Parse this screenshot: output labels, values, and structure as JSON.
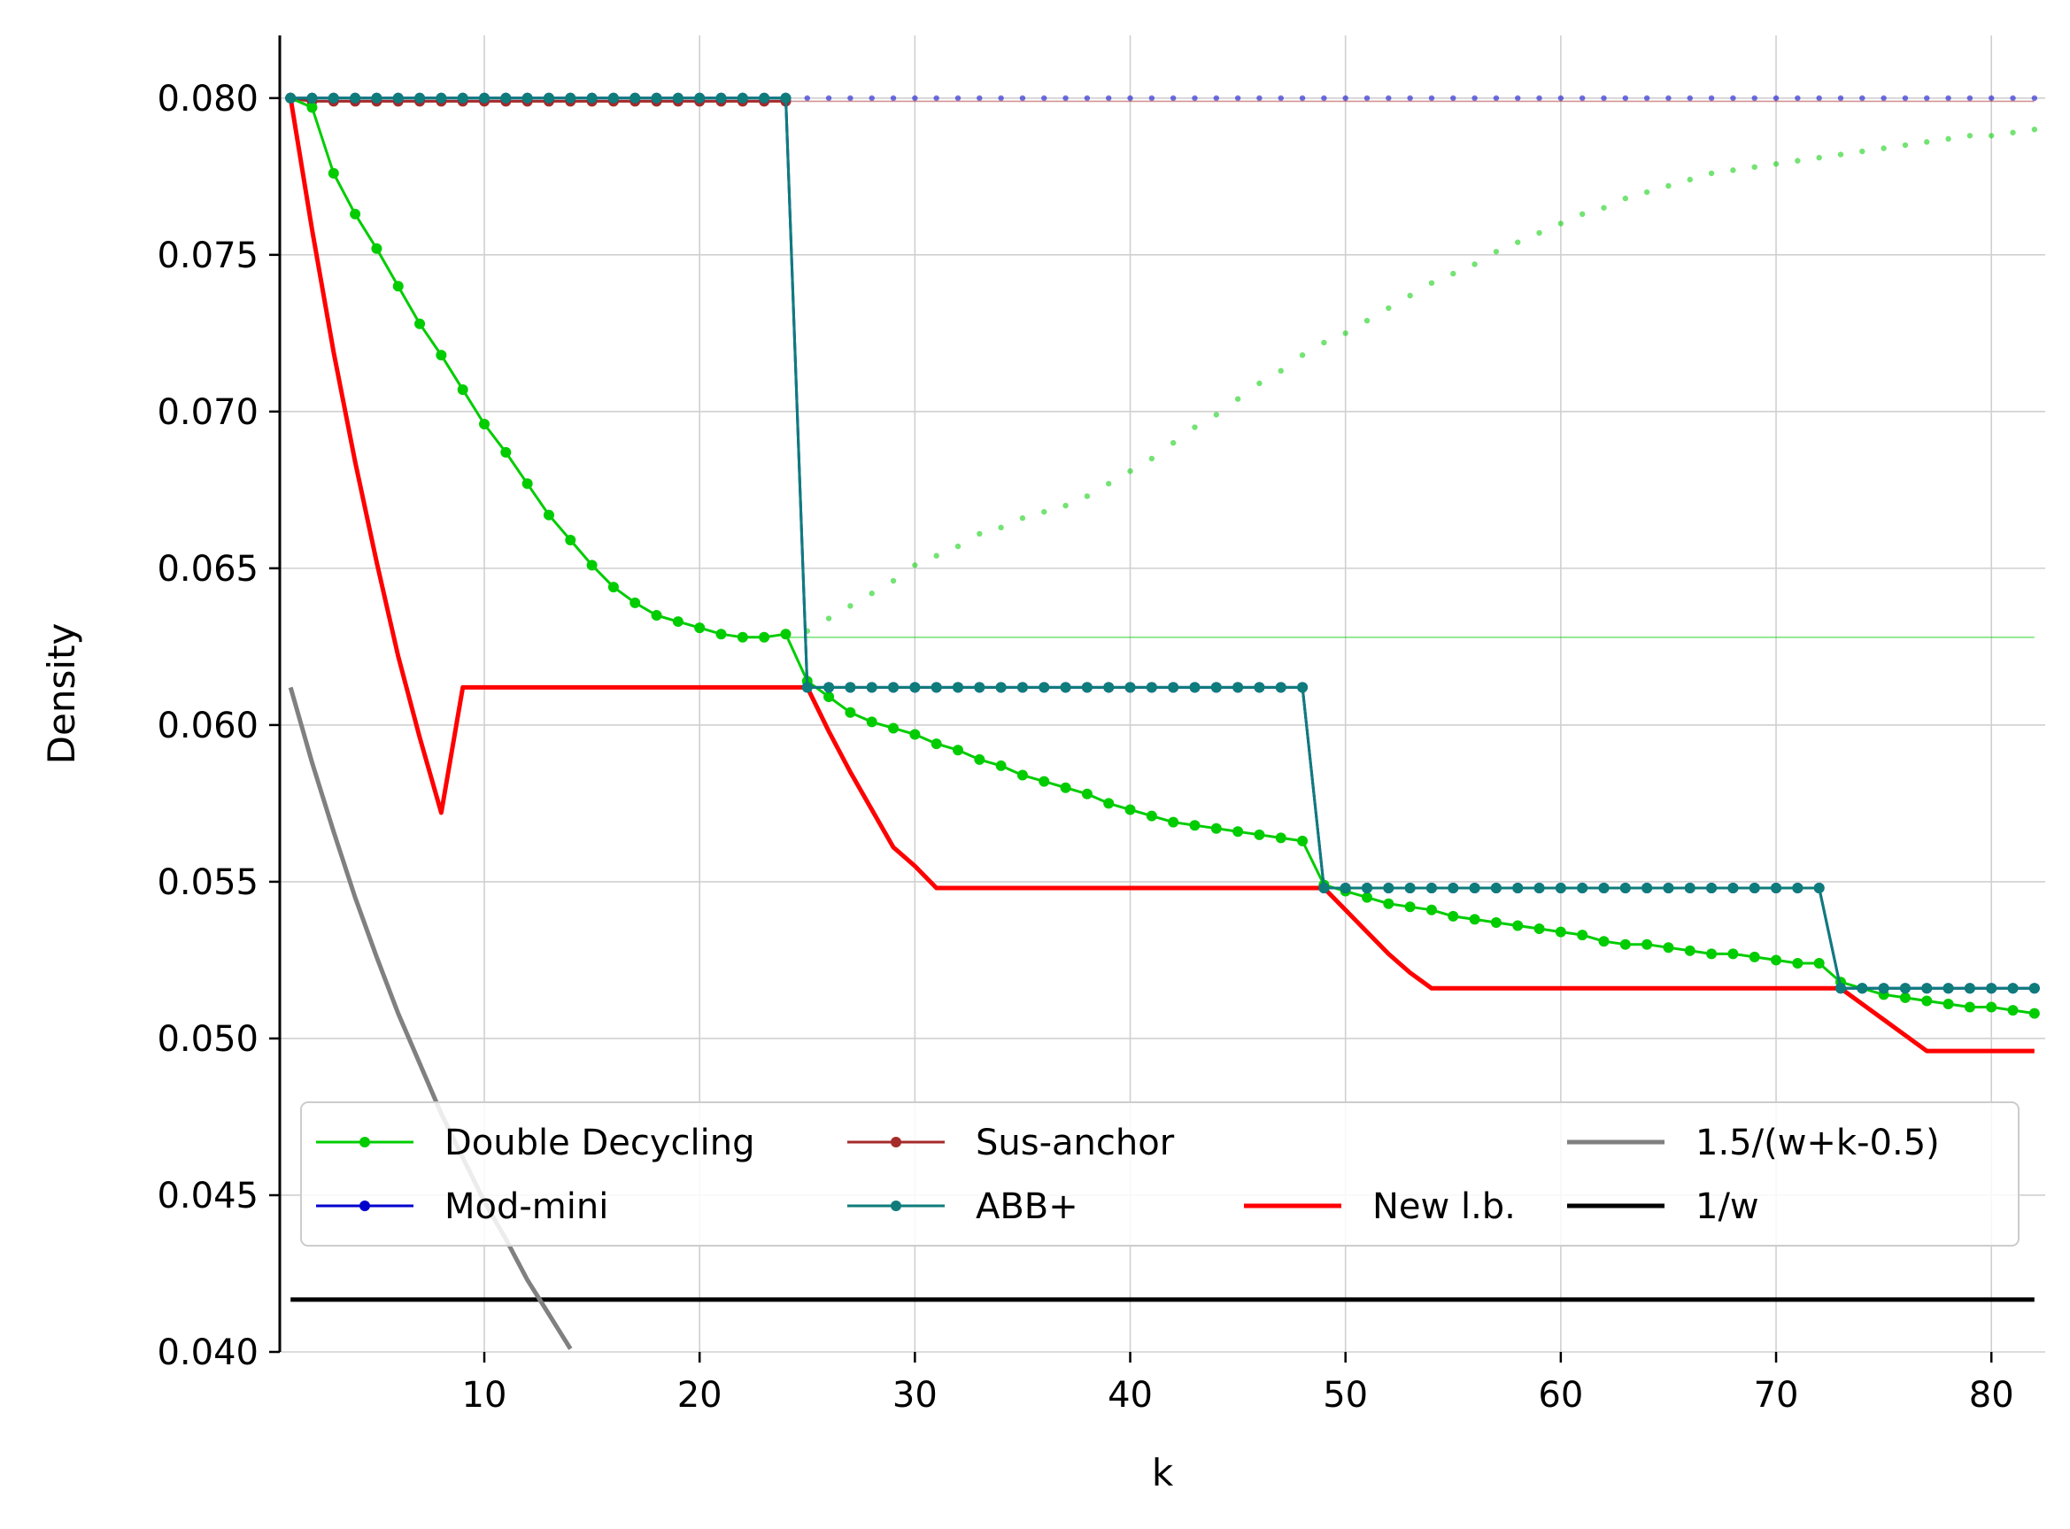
{
  "chart_data": {
    "type": "line",
    "xlabel": "k",
    "ylabel": "Density",
    "xlim": [
      0.5,
      82.5
    ],
    "ylim": [
      0.04,
      0.082
    ],
    "xticks": [
      10,
      20,
      30,
      40,
      50,
      60,
      70,
      80
    ],
    "xtick_labels": [
      "10",
      "20",
      "30",
      "40",
      "50",
      "60",
      "70",
      "80"
    ],
    "yticks": [
      0.04,
      0.045,
      0.05,
      0.055,
      0.06,
      0.065,
      0.07,
      0.075,
      0.08
    ],
    "ytick_labels": [
      "0.040",
      "0.045",
      "0.050",
      "0.055",
      "0.060",
      "0.065",
      "0.070",
      "0.075",
      "0.080"
    ],
    "grid": true,
    "legend_position": "lower-center",
    "series": [
      {
        "name": "Double Decycling",
        "color": "#00cc00",
        "style": "line-markers",
        "x": [
          1,
          2,
          3,
          4,
          5,
          6,
          7,
          8,
          9,
          10,
          11,
          12,
          13,
          14,
          15,
          16,
          17,
          18,
          19,
          20,
          21,
          22,
          23,
          24,
          25,
          26,
          27,
          28,
          29,
          30,
          31,
          32,
          33,
          34,
          35,
          36,
          37,
          38,
          39,
          40,
          41,
          42,
          43,
          44,
          45,
          46,
          47,
          48,
          49,
          50,
          51,
          52,
          53,
          54,
          55,
          56,
          57,
          58,
          59,
          60,
          61,
          62,
          63,
          64,
          65,
          66,
          67,
          68,
          69,
          70,
          71,
          72,
          73,
          74,
          75,
          76,
          77,
          78,
          79,
          80,
          81,
          82
        ],
        "y": [
          0.08,
          0.0797,
          0.0776,
          0.0763,
          0.0752,
          0.074,
          0.0728,
          0.0718,
          0.0707,
          0.0696,
          0.0687,
          0.0677,
          0.0667,
          0.0659,
          0.0651,
          0.0644,
          0.0639,
          0.0635,
          0.0633,
          0.0631,
          0.0629,
          0.0628,
          0.0628,
          0.0629,
          0.0614,
          0.0609,
          0.0604,
          0.0601,
          0.0599,
          0.0597,
          0.0594,
          0.0592,
          0.0589,
          0.0587,
          0.0584,
          0.0582,
          0.058,
          0.0578,
          0.0575,
          0.0573,
          0.0571,
          0.0569,
          0.0568,
          0.0567,
          0.0566,
          0.0565,
          0.0564,
          0.0563,
          0.0549,
          0.0547,
          0.0545,
          0.0543,
          0.0542,
          0.0541,
          0.0539,
          0.0538,
          0.0537,
          0.0536,
          0.0535,
          0.0534,
          0.0533,
          0.0531,
          0.053,
          0.053,
          0.0529,
          0.0528,
          0.0527,
          0.0527,
          0.0526,
          0.0525,
          0.0524,
          0.0524,
          0.0518,
          0.0516,
          0.0514,
          0.0513,
          0.0512,
          0.0511,
          0.051,
          0.051,
          0.0509,
          0.0508
        ]
      },
      {
        "name": "Mod-mini",
        "color": "#0000cc",
        "style": "line-markers",
        "x": [
          1,
          2,
          3,
          4,
          5,
          6,
          7,
          8,
          9,
          10,
          11,
          12,
          13,
          14,
          15,
          16,
          17,
          18,
          19,
          20,
          21,
          22,
          23,
          24,
          25,
          26,
          27,
          28,
          29,
          30,
          31,
          32,
          33,
          34,
          35,
          36,
          37,
          38,
          39,
          40,
          41,
          42,
          43,
          44,
          45,
          46,
          47,
          48,
          49,
          50,
          51,
          52,
          53,
          54,
          55,
          56,
          57,
          58,
          59,
          60,
          61,
          62,
          63,
          64,
          65,
          66,
          67,
          68,
          69,
          70,
          71,
          72,
          73,
          74,
          75,
          76,
          77,
          78,
          79,
          80,
          81,
          82
        ],
        "y": [
          0.08,
          0.08,
          0.08,
          0.08,
          0.08,
          0.08,
          0.08,
          0.08,
          0.08,
          0.08,
          0.08,
          0.08,
          0.08,
          0.08,
          0.08,
          0.08,
          0.08,
          0.08,
          0.08,
          0.08,
          0.08,
          0.08,
          0.08,
          0.08,
          0.0612,
          0.0612,
          0.0612,
          0.0612,
          0.0612,
          0.0612,
          0.0612,
          0.0612,
          0.0612,
          0.0612,
          0.0612,
          0.0612,
          0.0612,
          0.0612,
          0.0612,
          0.0612,
          0.0612,
          0.0612,
          0.0612,
          0.0612,
          0.0612,
          0.0612,
          0.0612,
          0.0612,
          0.0548,
          0.0548,
          0.0548,
          0.0548,
          0.0548,
          0.0548,
          0.0548,
          0.0548,
          0.0548,
          0.0548,
          0.0548,
          0.0548,
          0.0548,
          0.0548,
          0.0548,
          0.0548,
          0.0548,
          0.0548,
          0.0548,
          0.0548,
          0.0548,
          0.0548,
          0.0548,
          0.0548,
          0.0516,
          0.0516,
          0.0516,
          0.0516,
          0.0516,
          0.0516,
          0.0516,
          0.0516,
          0.0516,
          0.0516
        ]
      },
      {
        "name": "Sus-anchor",
        "color": "#a52a2a",
        "style": "line-markers",
        "x": [
          1,
          2,
          3,
          4,
          5,
          6,
          7,
          8,
          9,
          10,
          11,
          12,
          13,
          14,
          15,
          16,
          17,
          18,
          19,
          20,
          21,
          22,
          23,
          24
        ],
        "y": [
          0.08,
          0.0799,
          0.0799,
          0.0799,
          0.0799,
          0.0799,
          0.0799,
          0.0799,
          0.0799,
          0.0799,
          0.0799,
          0.0799,
          0.0799,
          0.0799,
          0.0799,
          0.0799,
          0.0799,
          0.0799,
          0.0799,
          0.0799,
          0.0799,
          0.0799,
          0.0799,
          0.0799
        ]
      },
      {
        "name": "ABB+",
        "color": "#0e7c7b",
        "style": "line-markers",
        "x": [
          1,
          2,
          3,
          4,
          5,
          6,
          7,
          8,
          9,
          10,
          11,
          12,
          13,
          14,
          15,
          16,
          17,
          18,
          19,
          20,
          21,
          22,
          23,
          24,
          25,
          26,
          27,
          28,
          29,
          30,
          31,
          32,
          33,
          34,
          35,
          36,
          37,
          38,
          39,
          40,
          41,
          42,
          43,
          44,
          45,
          46,
          47,
          48,
          49,
          50,
          51,
          52,
          53,
          54,
          55,
          56,
          57,
          58,
          59,
          60,
          61,
          62,
          63,
          64,
          65,
          66,
          67,
          68,
          69,
          70,
          71,
          72,
          73,
          74,
          75,
          76,
          77,
          78,
          79,
          80,
          81,
          82
        ],
        "y": [
          0.08,
          0.08,
          0.08,
          0.08,
          0.08,
          0.08,
          0.08,
          0.08,
          0.08,
          0.08,
          0.08,
          0.08,
          0.08,
          0.08,
          0.08,
          0.08,
          0.08,
          0.08,
          0.08,
          0.08,
          0.08,
          0.08,
          0.08,
          0.08,
          0.0612,
          0.0612,
          0.0612,
          0.0612,
          0.0612,
          0.0612,
          0.0612,
          0.0612,
          0.0612,
          0.0612,
          0.0612,
          0.0612,
          0.0612,
          0.0612,
          0.0612,
          0.0612,
          0.0612,
          0.0612,
          0.0612,
          0.0612,
          0.0612,
          0.0612,
          0.0612,
          0.0612,
          0.0548,
          0.0548,
          0.0548,
          0.0548,
          0.0548,
          0.0548,
          0.0548,
          0.0548,
          0.0548,
          0.0548,
          0.0548,
          0.0548,
          0.0548,
          0.0548,
          0.0548,
          0.0548,
          0.0548,
          0.0548,
          0.0548,
          0.0548,
          0.0548,
          0.0548,
          0.0548,
          0.0548,
          0.0516,
          0.0516,
          0.0516,
          0.0516,
          0.0516,
          0.0516,
          0.0516,
          0.0516,
          0.0516,
          0.0516
        ]
      },
      {
        "name": "New l.b.",
        "color": "#ff0000",
        "style": "line",
        "x": [
          1,
          2,
          3,
          4,
          5,
          6,
          7,
          8,
          9,
          24,
          25,
          26,
          27,
          28,
          29,
          30,
          31,
          48,
          49,
          50,
          51,
          52,
          53,
          54,
          72,
          73,
          74,
          75,
          76,
          77,
          82
        ],
        "y": [
          0.08,
          0.0758,
          0.0719,
          0.0684,
          0.0652,
          0.0622,
          0.0596,
          0.0572,
          0.0612,
          0.0612,
          0.0612,
          0.0598,
          0.0585,
          0.0573,
          0.0561,
          0.0555,
          0.0548,
          0.0548,
          0.0548,
          0.0541,
          0.0534,
          0.0527,
          0.0521,
          0.0516,
          0.0516,
          0.0516,
          0.0511,
          0.0506,
          0.0501,
          0.0496,
          0.0496
        ]
      },
      {
        "name": "1.5/(w+k-0.5)",
        "color": "#808080",
        "style": "line",
        "x": [
          1,
          2,
          3,
          4,
          5,
          6,
          7,
          8,
          9,
          10,
          11,
          12,
          13,
          14
        ],
        "y": [
          0.0612,
          0.0588,
          0.0566,
          0.0545,
          0.0526,
          0.0508,
          0.0492,
          0.0476,
          0.0462,
          0.0448,
          0.0436,
          0.0423,
          0.0412,
          0.0401
        ]
      },
      {
        "name": "1/w",
        "color": "#000000",
        "style": "line",
        "x": [
          1,
          82
        ],
        "y": [
          0.04167,
          0.04167
        ]
      }
    ],
    "extra_lines": [
      {
        "color": "#00cc00",
        "style": "dotted",
        "x": [
          1,
          2,
          3,
          4,
          5,
          6,
          7,
          8,
          9,
          10,
          11,
          12,
          13,
          14,
          15,
          16,
          17,
          18,
          19,
          20,
          21,
          22,
          23,
          24,
          25,
          26,
          27,
          28,
          29,
          30,
          31,
          32,
          33,
          34,
          35,
          36,
          37,
          38,
          39,
          40,
          41,
          42,
          43,
          44,
          45,
          46,
          47,
          48,
          49,
          50,
          51,
          52,
          53,
          54,
          55,
          56,
          57,
          58,
          59,
          60,
          61,
          62,
          63,
          64,
          65,
          66,
          67,
          68,
          69,
          70,
          71,
          72,
          73,
          74,
          75,
          76,
          77,
          78,
          79,
          80,
          81,
          82
        ],
        "y": [
          0.08,
          0.08,
          0.08,
          0.08,
          0.08,
          0.08,
          0.08,
          0.08,
          0.08,
          0.08,
          0.08,
          0.08,
          0.08,
          0.08,
          0.08,
          0.08,
          0.08,
          0.08,
          0.08,
          0.08,
          0.08,
          0.08,
          0.08,
          0.08,
          0.063,
          0.0634,
          0.0638,
          0.0642,
          0.0646,
          0.0651,
          0.0654,
          0.0657,
          0.0661,
          0.0663,
          0.0666,
          0.0668,
          0.067,
          0.0673,
          0.0677,
          0.0681,
          0.0685,
          0.069,
          0.0695,
          0.0699,
          0.0704,
          0.0709,
          0.0713,
          0.0718,
          0.0722,
          0.0725,
          0.0729,
          0.0733,
          0.0737,
          0.0741,
          0.0744,
          0.0747,
          0.0751,
          0.0754,
          0.0757,
          0.076,
          0.0763,
          0.0765,
          0.0768,
          0.077,
          0.0772,
          0.0774,
          0.0776,
          0.0777,
          0.0778,
          0.0779,
          0.078,
          0.0781,
          0.0782,
          0.0783,
          0.0784,
          0.0785,
          0.0786,
          0.0787,
          0.0788,
          0.0788,
          0.0789,
          0.079
        ]
      },
      {
        "color": "#0000cc",
        "style": "dotted",
        "x": [
          25,
          26,
          27,
          28,
          29,
          30,
          31,
          32,
          33,
          34,
          35,
          36,
          37,
          38,
          39,
          40,
          41,
          42,
          43,
          44,
          45,
          46,
          47,
          48,
          49,
          50,
          51,
          52,
          53,
          54,
          55,
          56,
          57,
          58,
          59,
          60,
          61,
          62,
          63,
          64,
          65,
          66,
          67,
          68,
          69,
          70,
          71,
          72,
          73,
          74,
          75,
          76,
          77,
          78,
          79,
          80,
          81,
          82
        ],
        "y": [
          0.08,
          0.08,
          0.08,
          0.08,
          0.08,
          0.08,
          0.08,
          0.08,
          0.08,
          0.08,
          0.08,
          0.08,
          0.08,
          0.08,
          0.08,
          0.08,
          0.08,
          0.08,
          0.08,
          0.08,
          0.08,
          0.08,
          0.08,
          0.08,
          0.08,
          0.08,
          0.08,
          0.08,
          0.08,
          0.08,
          0.08,
          0.08,
          0.08,
          0.08,
          0.08,
          0.08,
          0.08,
          0.08,
          0.08,
          0.08,
          0.08,
          0.08,
          0.08,
          0.08,
          0.08,
          0.08,
          0.08,
          0.08,
          0.08,
          0.08,
          0.08,
          0.08,
          0.08,
          0.08,
          0.08,
          0.08,
          0.08,
          0.08
        ]
      },
      {
        "color": "#00cc00",
        "style": "thin",
        "x": [
          24,
          82
        ],
        "y": [
          0.0628,
          0.0628
        ]
      },
      {
        "color": "#a52a2a",
        "style": "thin",
        "x": [
          1,
          82
        ],
        "y": [
          0.0799,
          0.0799
        ]
      }
    ],
    "legend_layout": [
      [
        "Double Decycling",
        "Sus-anchor",
        "",
        "1.5/(w+k-0.5)"
      ],
      [
        "Mod-mini",
        "ABB+",
        "New l.b.",
        "1/w"
      ]
    ]
  }
}
